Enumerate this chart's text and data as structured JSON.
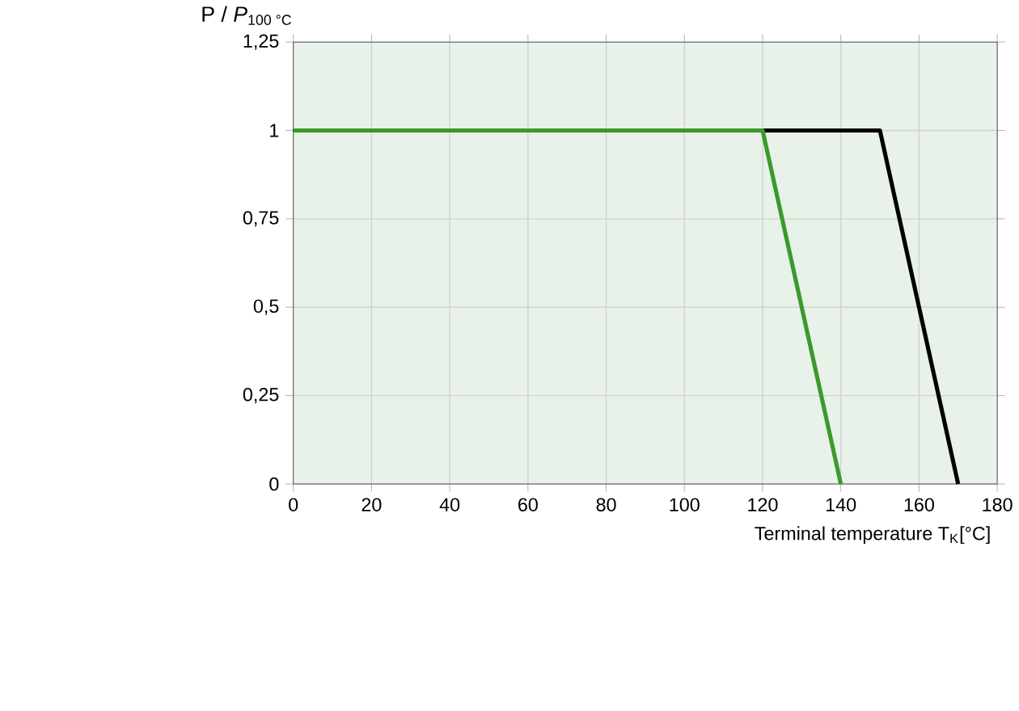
{
  "chart_data": {
    "type": "line",
    "xlabel": "Terminal temperature T$_{K}$[°C]",
    "ylabel": "P / *P*$_{100 °C}$",
    "xlim": [
      0,
      180
    ],
    "xticks": [
      0,
      20,
      40,
      60,
      80,
      100,
      120,
      140,
      160,
      180
    ],
    "ylim": [
      0,
      1.25
    ],
    "yticks": [
      {
        "value": 0,
        "label": "0"
      },
      {
        "value": 0.25,
        "label": "0,25"
      },
      {
        "value": 0.5,
        "label": "0,5"
      },
      {
        "value": 0.75,
        "label": "0,75"
      },
      {
        "value": 1,
        "label": "1"
      },
      {
        "value": 1.25,
        "label": "1,25"
      }
    ],
    "grid": true,
    "marker": "none",
    "line_style": "solid",
    "series": [
      {
        "color": "#000000",
        "x": [
          0,
          150,
          170
        ],
        "values": [
          1,
          1,
          0
        ]
      },
      {
        "color": "#3a9a2a",
        "x": [
          0,
          120,
          140
        ],
        "values": [
          1,
          1,
          0
        ]
      }
    ]
  }
}
